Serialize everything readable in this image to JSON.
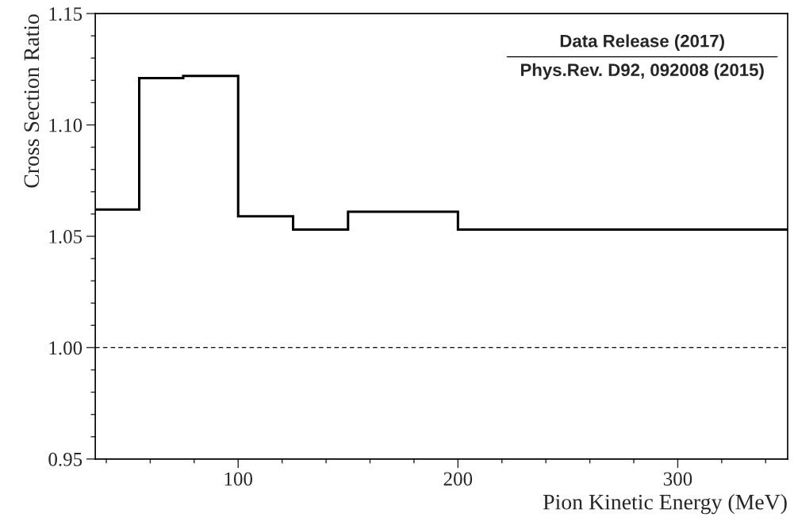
{
  "chart_data": {
    "type": "histogram",
    "xlabel": "Pion Kinetic Energy (MeV)",
    "ylabel": "Cross Section Ratio",
    "bins": [
      35,
      55,
      75,
      100,
      125,
      150,
      200,
      350
    ],
    "values": [
      1.062,
      1.121,
      1.122,
      1.059,
      1.053,
      1.061,
      1.053
    ],
    "color": "#000000",
    "xlim": [
      35,
      350
    ],
    "xticks": [
      100,
      200,
      300
    ],
    "ylim": [
      0.95,
      1.15
    ],
    "yticks": [
      {
        "value": 0.95,
        "label": "0.95"
      },
      {
        "value": 1.0,
        "label": "1.00"
      },
      {
        "value": 1.05,
        "label": "1.05"
      },
      {
        "value": 1.1,
        "label": "1.10"
      },
      {
        "value": 1.15,
        "label": "1.15"
      }
    ],
    "ref_lines": [
      {
        "axis": "y",
        "value": 1.0,
        "color": "#000000",
        "line_style": "dashed"
      }
    ],
    "annotations": [
      "Data Release (2017)",
      "Phys.Rev. D92, 092008 (2015)"
    ],
    "grid": false,
    "legend": false
  }
}
